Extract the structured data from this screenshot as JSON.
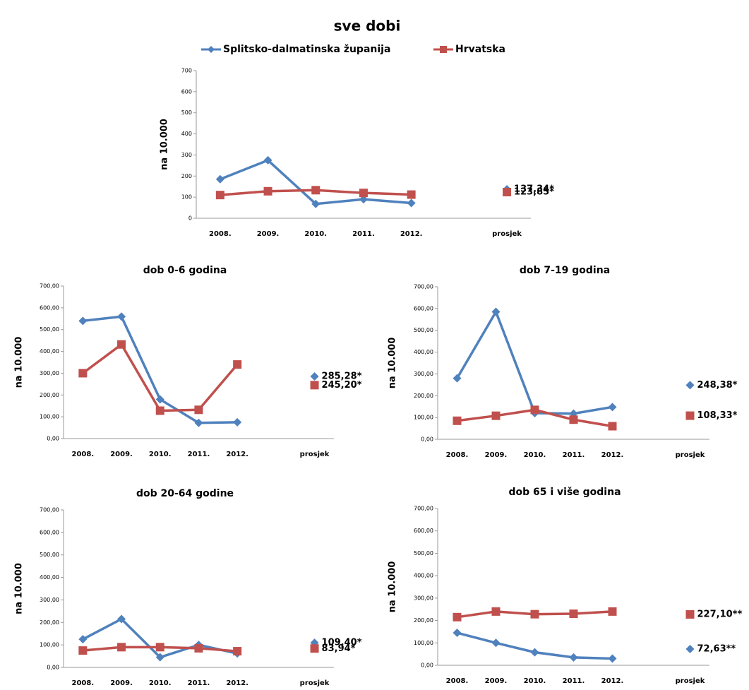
{
  "chart_data": [
    {
      "type": "line",
      "title": "sve dobi",
      "legend": true,
      "y_label": "na 10.000",
      "categories": [
        "2008.",
        "2009.",
        "2010.",
        "2011.",
        "2012.",
        "prosjek"
      ],
      "ylim": [
        0,
        700
      ],
      "yticks": [
        0,
        100,
        200,
        300,
        400,
        500,
        600,
        700
      ],
      "series": [
        {
          "name": "Splitsko-dalmatinska županija",
          "color": "#4f81bd",
          "marker": "diamond",
          "values": [
            185,
            275,
            68,
            90,
            72,
            137.34
          ],
          "value_labels": [
            null,
            null,
            null,
            null,
            null,
            "137,34*"
          ]
        },
        {
          "name": "Hrvatska",
          "color": "#c0504d",
          "marker": "square",
          "values": [
            110,
            128,
            133,
            120,
            112,
            123.85
          ],
          "value_labels": [
            null,
            null,
            null,
            null,
            null,
            "123,85*"
          ]
        }
      ]
    },
    {
      "type": "line",
      "title": "dob 0-6 godina",
      "y_label": "na 10.000",
      "categories": [
        "2008.",
        "2009.",
        "2010.",
        "2011.",
        "2012.",
        "prosjek"
      ],
      "ylim": [
        0,
        700
      ],
      "yticks": [
        {
          "value": 0,
          "label": "0,00"
        },
        {
          "value": 100,
          "label": "100,00"
        },
        {
          "value": 200,
          "label": "200,00"
        },
        {
          "value": 300,
          "label": "300,00"
        },
        {
          "value": 400,
          "label": "400,00"
        },
        {
          "value": 500,
          "label": "500,00"
        },
        {
          "value": 600,
          "label": "600,00"
        },
        {
          "value": 700,
          "label": "700,00"
        }
      ],
      "series": [
        {
          "color": "#4f81bd",
          "marker": "diamond",
          "values": [
            540,
            560,
            180,
            72,
            75,
            285.28
          ],
          "value_labels": [
            null,
            null,
            null,
            null,
            null,
            "285,28*"
          ]
        },
        {
          "color": "#c0504d",
          "marker": "square",
          "values": [
            300,
            432,
            128,
            132,
            340,
            245.2
          ],
          "value_labels": [
            null,
            null,
            null,
            null,
            null,
            "245,20*"
          ]
        }
      ]
    },
    {
      "type": "line",
      "title": "dob 7-19 godina",
      "y_label": "na 10.000",
      "categories": [
        "2008.",
        "2009.",
        "2010.",
        "2011.",
        "2012.",
        "prosjek"
      ],
      "ylim": [
        0,
        700
      ],
      "yticks": [
        {
          "value": 0,
          "label": "0,00"
        },
        {
          "value": 100,
          "label": "100,00"
        },
        {
          "value": 200,
          "label": "200,00"
        },
        {
          "value": 300,
          "label": "300,00"
        },
        {
          "value": 400,
          "label": "400,00"
        },
        {
          "value": 500,
          "label": "500,00"
        },
        {
          "value": 600,
          "label": "600,00"
        },
        {
          "value": 700,
          "label": "700,00"
        }
      ],
      "series": [
        {
          "color": "#4f81bd",
          "marker": "diamond",
          "values": [
            280,
            585,
            120,
            118,
            148,
            248.38
          ],
          "value_labels": [
            null,
            null,
            null,
            null,
            null,
            "248,38*"
          ]
        },
        {
          "color": "#c0504d",
          "marker": "square",
          "values": [
            85,
            108,
            135,
            90,
            60,
            108.33
          ],
          "value_labels": [
            null,
            null,
            null,
            null,
            null,
            "108,33*"
          ]
        }
      ]
    },
    {
      "type": "line",
      "title": "dob 20-64 godine",
      "y_label": "na 10.000",
      "categories": [
        "2008.",
        "2009.",
        "2010.",
        "2011.",
        "2012.",
        "prosjek"
      ],
      "ylim": [
        0,
        700
      ],
      "yticks": [
        {
          "value": 0,
          "label": "0,00"
        },
        {
          "value": 100,
          "label": "100,00"
        },
        {
          "value": 200,
          "label": "200,00"
        },
        {
          "value": 300,
          "label": "300,00"
        },
        {
          "value": 400,
          "label": "400,00"
        },
        {
          "value": 500,
          "label": "500,00"
        },
        {
          "value": 600,
          "label": "600,00"
        },
        {
          "value": 700,
          "label": "700,00"
        }
      ],
      "series": [
        {
          "color": "#4f81bd",
          "marker": "diamond",
          "values": [
            125,
            215,
            45,
            100,
            62,
            109.4
          ],
          "value_labels": [
            null,
            null,
            null,
            null,
            null,
            "109,40*"
          ]
        },
        {
          "color": "#c0504d",
          "marker": "square",
          "values": [
            75,
            90,
            90,
            85,
            72,
            83.94
          ],
          "value_labels": [
            null,
            null,
            null,
            null,
            null,
            "83,94*"
          ]
        }
      ]
    },
    {
      "type": "line",
      "title": "dob 65 i više godina",
      "y_label": "na 10.000",
      "categories": [
        "2008.",
        "2009.",
        "2010.",
        "2011.",
        "2012.",
        "prosjek"
      ],
      "ylim": [
        0,
        700
      ],
      "yticks": [
        {
          "value": 0,
          "label": "0,00"
        },
        {
          "value": 100,
          "label": "100,00"
        },
        {
          "value": 200,
          "label": "200,00"
        },
        {
          "value": 300,
          "label": "300,00"
        },
        {
          "value": 400,
          "label": "400,00"
        },
        {
          "value": 500,
          "label": "500,00"
        },
        {
          "value": 600,
          "label": "600,00"
        },
        {
          "value": 700,
          "label": "700,00"
        }
      ],
      "series": [
        {
          "color": "#4f81bd",
          "marker": "diamond",
          "values": [
            145,
            100,
            58,
            35,
            30,
            72.63
          ],
          "value_labels": [
            null,
            null,
            null,
            null,
            null,
            "72,63**"
          ]
        },
        {
          "color": "#c0504d",
          "marker": "square",
          "values": [
            215,
            240,
            228,
            230,
            240,
            227.1
          ],
          "value_labels": [
            null,
            null,
            null,
            null,
            null,
            "227,10**"
          ]
        }
      ]
    }
  ]
}
